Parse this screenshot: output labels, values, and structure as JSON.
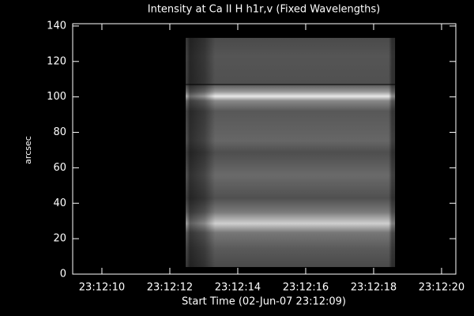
{
  "chart_data": {
    "type": "image",
    "title": "Intensity at Ca II H h1r,v (Fixed Wavelengths)",
    "x_label": "Start Time (02-Jun-07 23:12:09)",
    "y_label": "arcsec",
    "xlim": [
      9.14,
      20.42
    ],
    "ylim": [
      0,
      141.3
    ],
    "xticks": [
      {
        "value": 10,
        "label": "23:12:10"
      },
      {
        "value": 12,
        "label": "23:12:12"
      },
      {
        "value": 14,
        "label": "23:12:14"
      },
      {
        "value": 16,
        "label": "23:12:16"
      },
      {
        "value": 18,
        "label": "23:12:18"
      },
      {
        "value": 20,
        "label": "23:12:20"
      }
    ],
    "yticks": [
      0,
      20,
      40,
      60,
      80,
      100,
      120,
      140
    ],
    "image_extent": {
      "x": [
        12.47,
        18.63
      ],
      "y": [
        4,
        133.3
      ]
    },
    "hline": 107
  }
}
